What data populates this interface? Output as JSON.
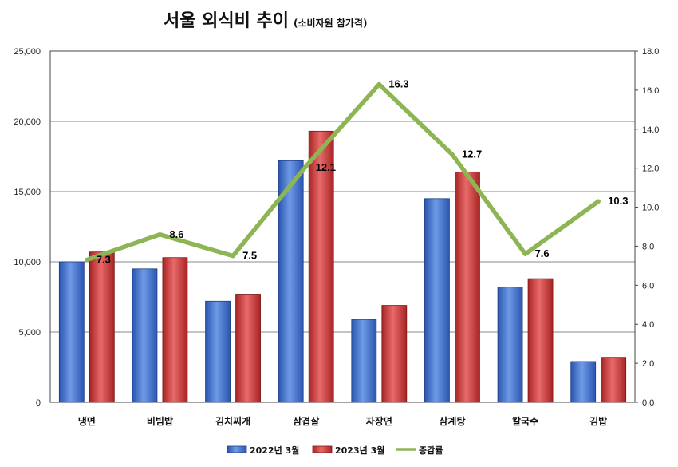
{
  "chart_data": {
    "type": "bar",
    "title": "서울 외식비 추이",
    "subtitle": "(소비자원 참가격)",
    "categories": [
      "냉면",
      "비빔밥",
      "김치찌개",
      "삼겹살",
      "자장면",
      "삼계탕",
      "칼국수",
      "김밥"
    ],
    "series": [
      {
        "name": "2022년 3월",
        "kind": "bar",
        "axis": "left",
        "color": "#3b6fd4",
        "values": [
          10000,
          9500,
          7200,
          17200,
          5900,
          14500,
          8200,
          2900
        ]
      },
      {
        "name": "2023년 3월",
        "kind": "bar",
        "axis": "left",
        "color": "#d23a3a",
        "values": [
          10700,
          10300,
          7700,
          19300,
          6900,
          16400,
          8800,
          3200
        ]
      },
      {
        "name": "증감률",
        "kind": "line",
        "axis": "right",
        "color": "#8db554",
        "values": [
          7.3,
          8.6,
          7.5,
          12.1,
          16.3,
          12.7,
          7.6,
          10.3
        ],
        "labels": [
          "7.3",
          "8.6",
          "7.5",
          "12.1",
          "16.3",
          "12.7",
          "7.6",
          "10.3"
        ]
      }
    ],
    "ylim": [
      0,
      25000
    ],
    "yticks": [
      0,
      5000,
      10000,
      15000,
      20000,
      25000
    ],
    "ytick_labels": [
      "0",
      "5,000",
      "10,000",
      "15,000",
      "20,000",
      "25,000"
    ],
    "y2lim": [
      0,
      18
    ],
    "y2ticks": [
      0,
      2,
      4,
      6,
      8,
      10,
      12,
      14,
      16,
      18
    ],
    "y2tick_labels": [
      "0.0",
      "2.0",
      "4.0",
      "6.0",
      "8.0",
      "10.0",
      "12.0",
      "14.0",
      "16.0",
      "18.0"
    ],
    "grid": true,
    "legend": "bottom"
  }
}
